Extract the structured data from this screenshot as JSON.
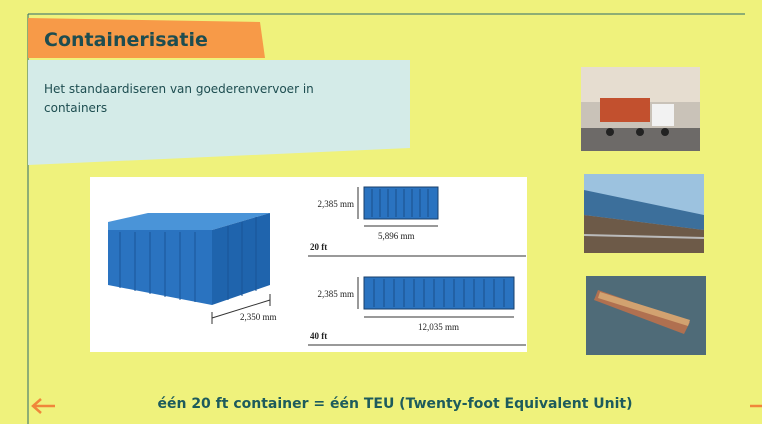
{
  "header": {
    "title": "Containerisatie",
    "subtitle": "Het standaardiseren van goederenvervoer in containers"
  },
  "diagram": {
    "width": "2,350 mm",
    "container_20ft": {
      "height": "2,385 mm",
      "length": "5,896 mm",
      "label": "20 ft"
    },
    "container_40ft": {
      "height": "2,385 mm",
      "length": "12,035 mm",
      "label": "40 ft"
    }
  },
  "footer": {
    "text": "één 20 ft container = één TEU (Twenty-foot Equivalent Unit)"
  }
}
